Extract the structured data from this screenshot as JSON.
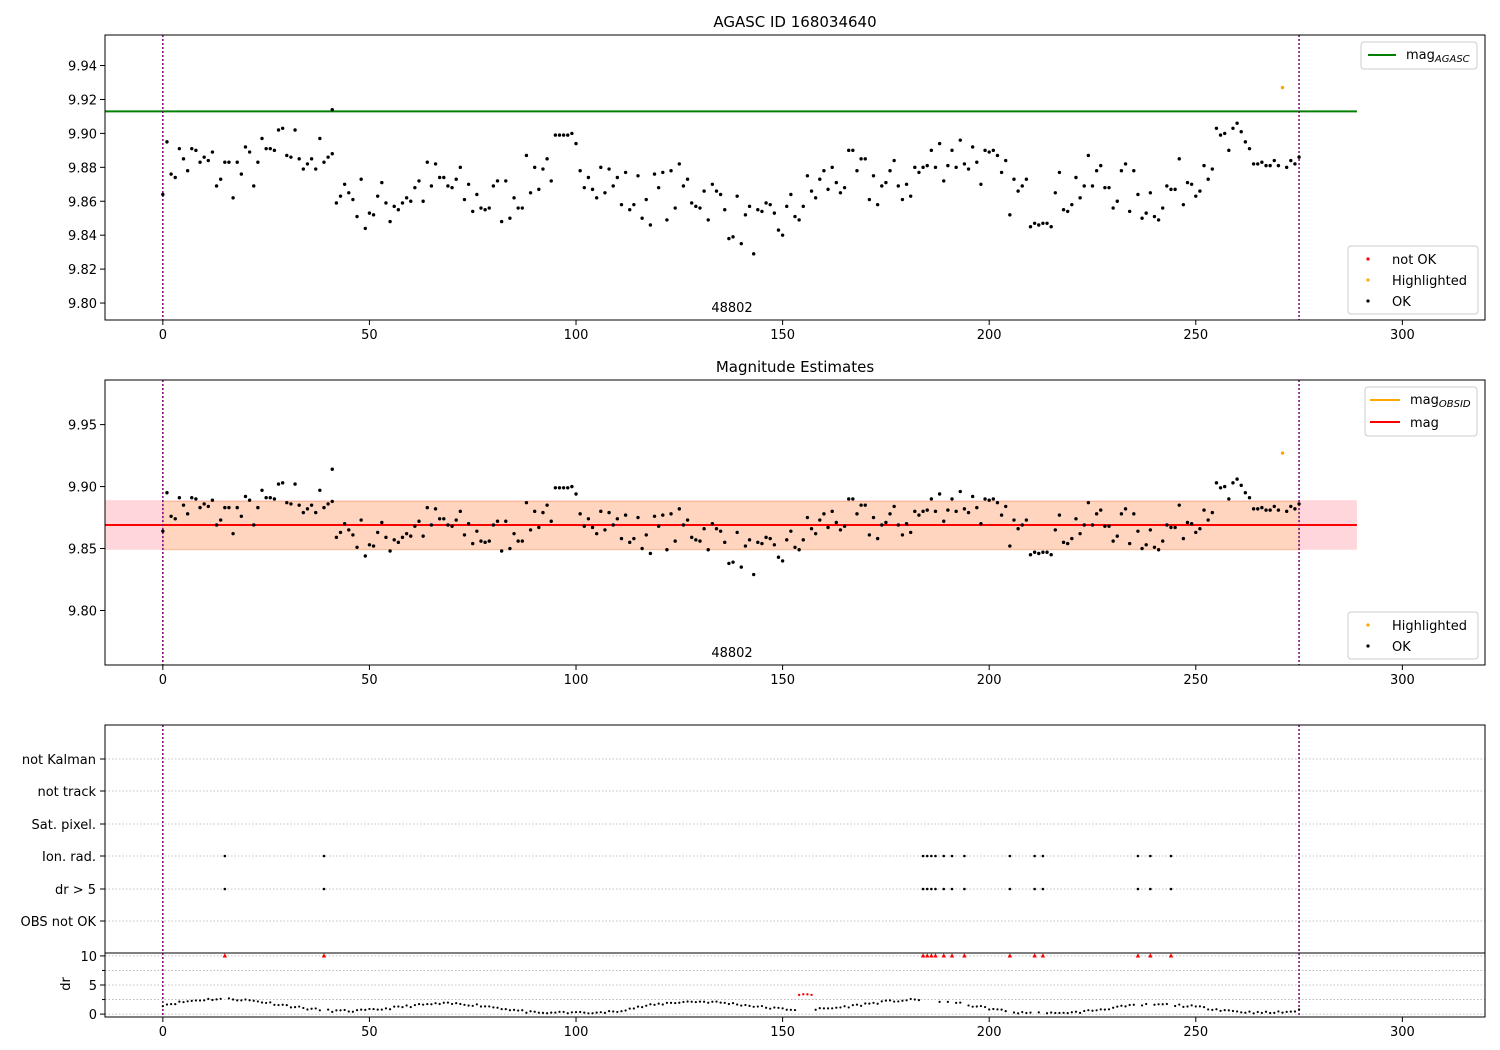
{
  "colors": {
    "ok": "#000000",
    "not_ok": "#ff0000",
    "highlighted": "#ffa500",
    "mag_agasc": "#008000",
    "mag_line": "#ff0000",
    "mag_obsid": "#ffa500",
    "obs_boundary": "#800080",
    "band_outer": "#ffd6dc",
    "band_inner": "#ffd5c0",
    "grid": "#b0b0b0"
  },
  "chart_data": [
    {
      "type": "scatter",
      "title": "AGASC ID 168034640",
      "xlabel": "",
      "ylabel": "",
      "xlim": [
        -14,
        320
      ],
      "ylim": [
        9.79,
        9.958
      ],
      "x_ticks": [
        0,
        50,
        100,
        150,
        200,
        250,
        300
      ],
      "y_ticks": [
        9.8,
        9.82,
        9.84,
        9.86,
        9.88,
        9.9,
        9.92,
        9.94
      ],
      "y_tick_labels": [
        "9.80",
        "9.82",
        "9.84",
        "9.86",
        "9.88",
        "9.90",
        "9.92",
        "9.94"
      ],
      "obsid_label": "48802",
      "obs_boundaries": [
        0,
        275
      ],
      "agasc_mag": 9.913,
      "agasc_line_x": [
        -14,
        289
      ],
      "highlighted_point": [
        271,
        9.927
      ],
      "stray_point": [
        41,
        9.914
      ],
      "legend_top": [
        {
          "label": "mag",
          "sub": "AGASC",
          "kind": "line"
        }
      ],
      "legend_bottom": [
        {
          "label": "not OK",
          "kind": "not_ok"
        },
        {
          "label": "Highlighted",
          "kind": "highlighted"
        },
        {
          "label": "OK",
          "kind": "ok"
        }
      ],
      "legend_position": "top-right / bottom-right",
      "grid": false
    },
    {
      "type": "scatter",
      "title": "Magnitude Estimates",
      "xlabel": "",
      "ylabel": "",
      "xlim": [
        -14,
        320
      ],
      "ylim": [
        9.756,
        9.986
      ],
      "x_ticks": [
        0,
        50,
        100,
        150,
        200,
        250,
        300
      ],
      "y_ticks": [
        9.8,
        9.85,
        9.9,
        9.95
      ],
      "y_tick_labels": [
        "9.80",
        "9.85",
        "9.90",
        "9.95"
      ],
      "obsid_label": "48802",
      "obs_boundaries": [
        0,
        275
      ],
      "mag": 9.869,
      "mag_band_outer": [
        9.849,
        9.889
      ],
      "mag_band_inner": [
        9.849,
        9.888
      ],
      "mag_line_x": [
        -14,
        289
      ],
      "highlighted_point": [
        271,
        9.927
      ],
      "stray_point": [
        41,
        9.914
      ],
      "legend_top": [
        {
          "label": "mag",
          "sub": "OBSID",
          "kind": "line_orange"
        },
        {
          "label": "mag",
          "sub": "",
          "kind": "line_red"
        }
      ],
      "legend_bottom": [
        {
          "label": "Highlighted",
          "kind": "highlighted"
        },
        {
          "label": "OK",
          "kind": "ok"
        }
      ],
      "legend_position": "top-right / bottom-right",
      "grid": false
    },
    {
      "type": "scatter",
      "title": "",
      "xlabel": "",
      "ylabel": "",
      "xlim": [
        -14,
        320
      ],
      "x_ticks": [
        0,
        50,
        100,
        150,
        200,
        250,
        300
      ],
      "obs_boundaries": [
        0,
        275
      ],
      "flag_categories": [
        "not Kalman",
        "not track",
        "Sat. pixel.",
        "Ion. rad.",
        "dr > 5",
        "OBS not OK"
      ],
      "flag_points": {
        "Ion. rad.": [
          15,
          39,
          184,
          185,
          186,
          187,
          189,
          191,
          194,
          205,
          211,
          213,
          236,
          239,
          244
        ],
        "dr > 5": [
          15,
          39,
          184,
          185,
          186,
          187,
          189,
          191,
          194,
          205,
          211,
          213,
          236,
          239,
          244
        ]
      },
      "grid": true
    },
    {
      "type": "scatter",
      "title": "",
      "xlabel": "",
      "ylabel": "dr",
      "xlim": [
        -14,
        320
      ],
      "ylim": [
        -0.5,
        10.5
      ],
      "x_ticks": [
        0,
        50,
        100,
        150,
        200,
        250,
        300
      ],
      "y_ticks": [
        0,
        5,
        10
      ],
      "y_tick_labels": [
        "0",
        "5",
        "10"
      ],
      "obs_boundaries": [
        0,
        275
      ],
      "dr_outliers_x": [
        15,
        39,
        184,
        185,
        186,
        187,
        189,
        191,
        194,
        205,
        211,
        213,
        236,
        239,
        244
      ],
      "dr_outlier_value": 10,
      "red_dr_points": [
        [
          154,
          3.3
        ],
        [
          155,
          3.4
        ],
        [
          156,
          3.4
        ],
        [
          157,
          3.3
        ]
      ],
      "grid": true
    }
  ]
}
